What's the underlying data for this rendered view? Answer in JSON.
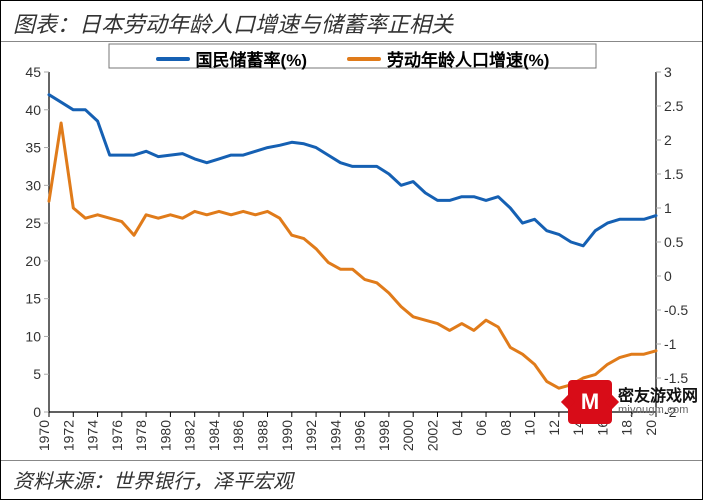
{
  "title": "图表：日本劳动年龄人口增速与储蓄率正相关",
  "source": "资料来源：世界银行，泽平宏观",
  "watermark": {
    "cn": "密友游戏网",
    "en": "miyougm.com",
    "logo_color": "#d80c18",
    "logo_glyph": "M"
  },
  "chart": {
    "type": "line-dual-axis",
    "background_color": "#ffffff",
    "grid": false,
    "legend": {
      "position": "top-center",
      "fontsize": 17,
      "fontweight": "bold",
      "box": true
    },
    "x": {
      "ticks": [
        1970,
        1972,
        1974,
        1976,
        1978,
        1980,
        1982,
        1984,
        1986,
        1988,
        1990,
        1992,
        1994,
        1996,
        1998,
        2000,
        2002,
        2004,
        2006,
        2008,
        2010,
        2012,
        2014,
        2016,
        2018,
        2020
      ],
      "rotation": -90,
      "fontsize": 14,
      "min": 1970,
      "max": 2020
    },
    "y_left": {
      "min": 0,
      "max": 45,
      "step": 5,
      "fontsize": 14
    },
    "y_right": {
      "min": -2,
      "max": 3,
      "step": 0.5,
      "precision_int_when_whole": true,
      "fontsize": 14
    },
    "line_width": 3,
    "series": [
      {
        "name": "国民储蓄率(%)",
        "axis": "left",
        "color": "#1560b3",
        "points": [
          [
            1970,
            42.0
          ],
          [
            1971,
            41.0
          ],
          [
            1972,
            40.0
          ],
          [
            1973,
            40.0
          ],
          [
            1974,
            38.5
          ],
          [
            1975,
            34.0
          ],
          [
            1976,
            34.0
          ],
          [
            1977,
            34.0
          ],
          [
            1978,
            34.5
          ],
          [
            1979,
            33.8
          ],
          [
            1980,
            34.0
          ],
          [
            1981,
            34.2
          ],
          [
            1982,
            33.5
          ],
          [
            1983,
            33.0
          ],
          [
            1984,
            33.5
          ],
          [
            1985,
            34.0
          ],
          [
            1986,
            34.0
          ],
          [
            1987,
            34.5
          ],
          [
            1988,
            35.0
          ],
          [
            1989,
            35.3
          ],
          [
            1990,
            35.7
          ],
          [
            1991,
            35.5
          ],
          [
            1992,
            35.0
          ],
          [
            1993,
            34.0
          ],
          [
            1994,
            33.0
          ],
          [
            1995,
            32.5
          ],
          [
            1996,
            32.5
          ],
          [
            1997,
            32.5
          ],
          [
            1998,
            31.5
          ],
          [
            1999,
            30.0
          ],
          [
            2000,
            30.5
          ],
          [
            2001,
            29.0
          ],
          [
            2002,
            28.0
          ],
          [
            2003,
            28.0
          ],
          [
            2004,
            28.5
          ],
          [
            2005,
            28.5
          ],
          [
            2006,
            28.0
          ],
          [
            2007,
            28.5
          ],
          [
            2008,
            27.0
          ],
          [
            2009,
            25.0
          ],
          [
            2010,
            25.5
          ],
          [
            2011,
            24.0
          ],
          [
            2012,
            23.5
          ],
          [
            2013,
            22.5
          ],
          [
            2014,
            22.0
          ],
          [
            2015,
            24.0
          ],
          [
            2016,
            25.0
          ],
          [
            2017,
            25.5
          ],
          [
            2018,
            25.5
          ],
          [
            2019,
            25.5
          ],
          [
            2020,
            26.0
          ]
        ]
      },
      {
        "name": "劳动年龄人口增速(%)",
        "axis": "right",
        "color": "#e07b1a",
        "points": [
          [
            1970,
            1.1
          ],
          [
            1971,
            2.25
          ],
          [
            1972,
            1.0
          ],
          [
            1973,
            0.85
          ],
          [
            1974,
            0.9
          ],
          [
            1975,
            0.85
          ],
          [
            1976,
            0.8
          ],
          [
            1977,
            0.6
          ],
          [
            1978,
            0.9
          ],
          [
            1979,
            0.85
          ],
          [
            1980,
            0.9
          ],
          [
            1981,
            0.85
          ],
          [
            1982,
            0.95
          ],
          [
            1983,
            0.9
          ],
          [
            1984,
            0.95
          ],
          [
            1985,
            0.9
          ],
          [
            1986,
            0.95
          ],
          [
            1987,
            0.9
          ],
          [
            1988,
            0.95
          ],
          [
            1989,
            0.85
          ],
          [
            1990,
            0.6
          ],
          [
            1991,
            0.55
          ],
          [
            1992,
            0.4
          ],
          [
            1993,
            0.2
          ],
          [
            1994,
            0.1
          ],
          [
            1995,
            0.1
          ],
          [
            1996,
            -0.05
          ],
          [
            1997,
            -0.1
          ],
          [
            1998,
            -0.25
          ],
          [
            1999,
            -0.45
          ],
          [
            2000,
            -0.6
          ],
          [
            2001,
            -0.65
          ],
          [
            2002,
            -0.7
          ],
          [
            2003,
            -0.8
          ],
          [
            2004,
            -0.7
          ],
          [
            2005,
            -0.8
          ],
          [
            2006,
            -0.65
          ],
          [
            2007,
            -0.75
          ],
          [
            2008,
            -1.05
          ],
          [
            2009,
            -1.15
          ],
          [
            2010,
            -1.3
          ],
          [
            2011,
            -1.55
          ],
          [
            2012,
            -1.65
          ],
          [
            2013,
            -1.6
          ],
          [
            2014,
            -1.5
          ],
          [
            2015,
            -1.45
          ],
          [
            2016,
            -1.3
          ],
          [
            2017,
            -1.2
          ],
          [
            2018,
            -1.15
          ],
          [
            2019,
            -1.15
          ],
          [
            2020,
            -1.1
          ]
        ]
      }
    ]
  }
}
